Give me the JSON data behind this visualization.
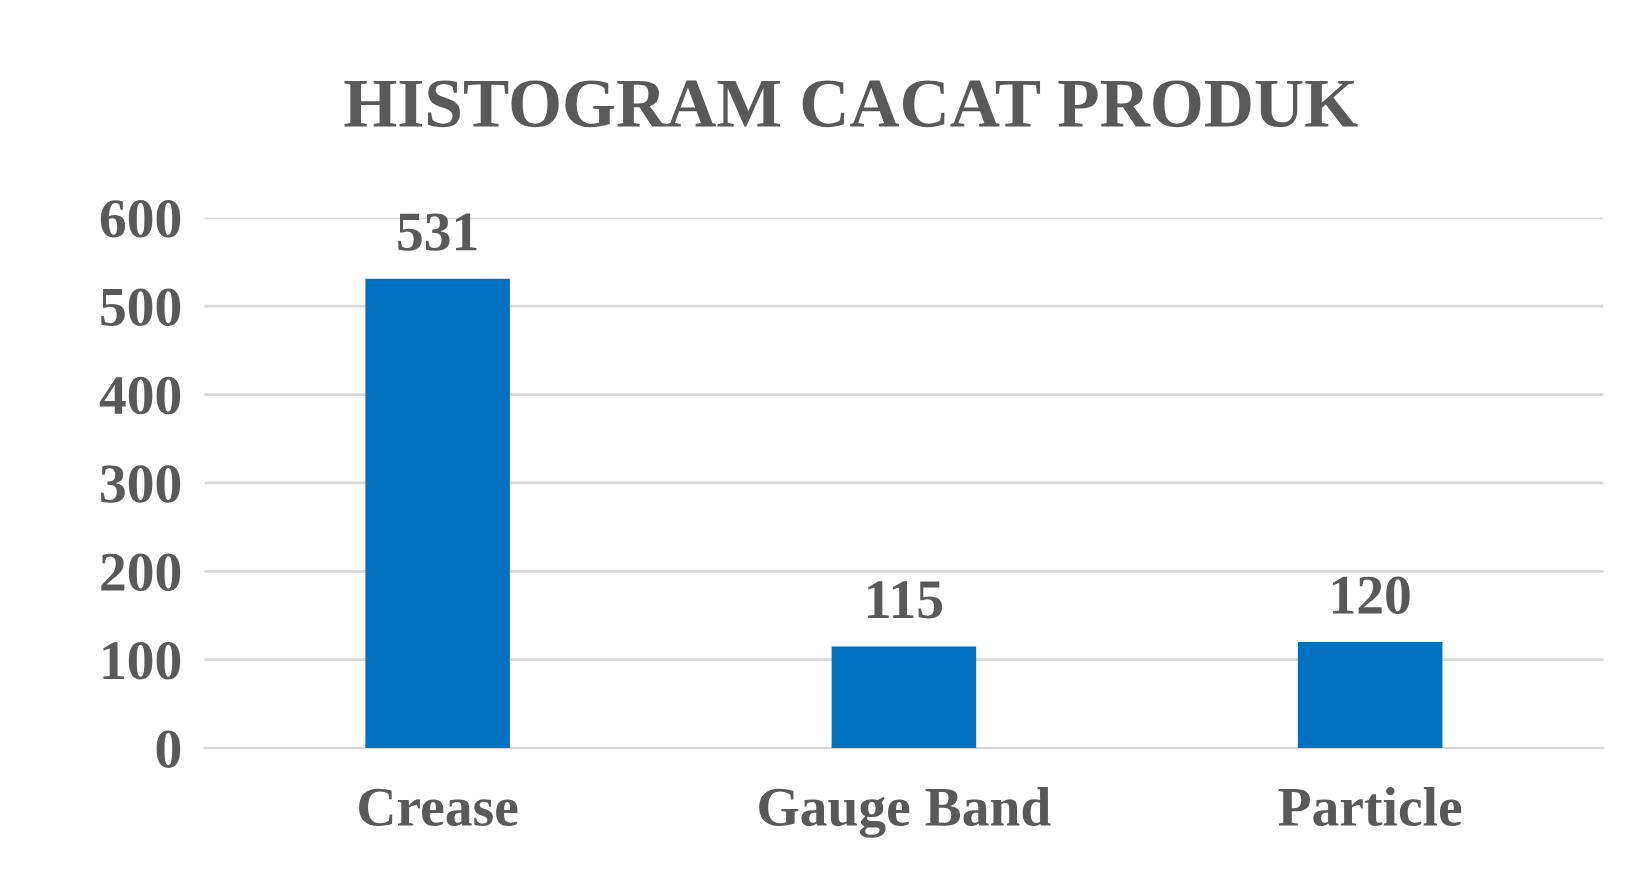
{
  "chart_data": {
    "type": "bar",
    "title": "HISTOGRAM CACAT PRODUK",
    "categories": [
      "Crease",
      "Gauge Band",
      "Particle"
    ],
    "values": [
      531,
      115,
      120
    ],
    "color": "#0070c0",
    "ylim": [
      0,
      600
    ],
    "yticks": [
      0,
      100,
      200,
      300,
      400,
      500,
      600
    ],
    "grid": "y",
    "data_labels": true
  }
}
